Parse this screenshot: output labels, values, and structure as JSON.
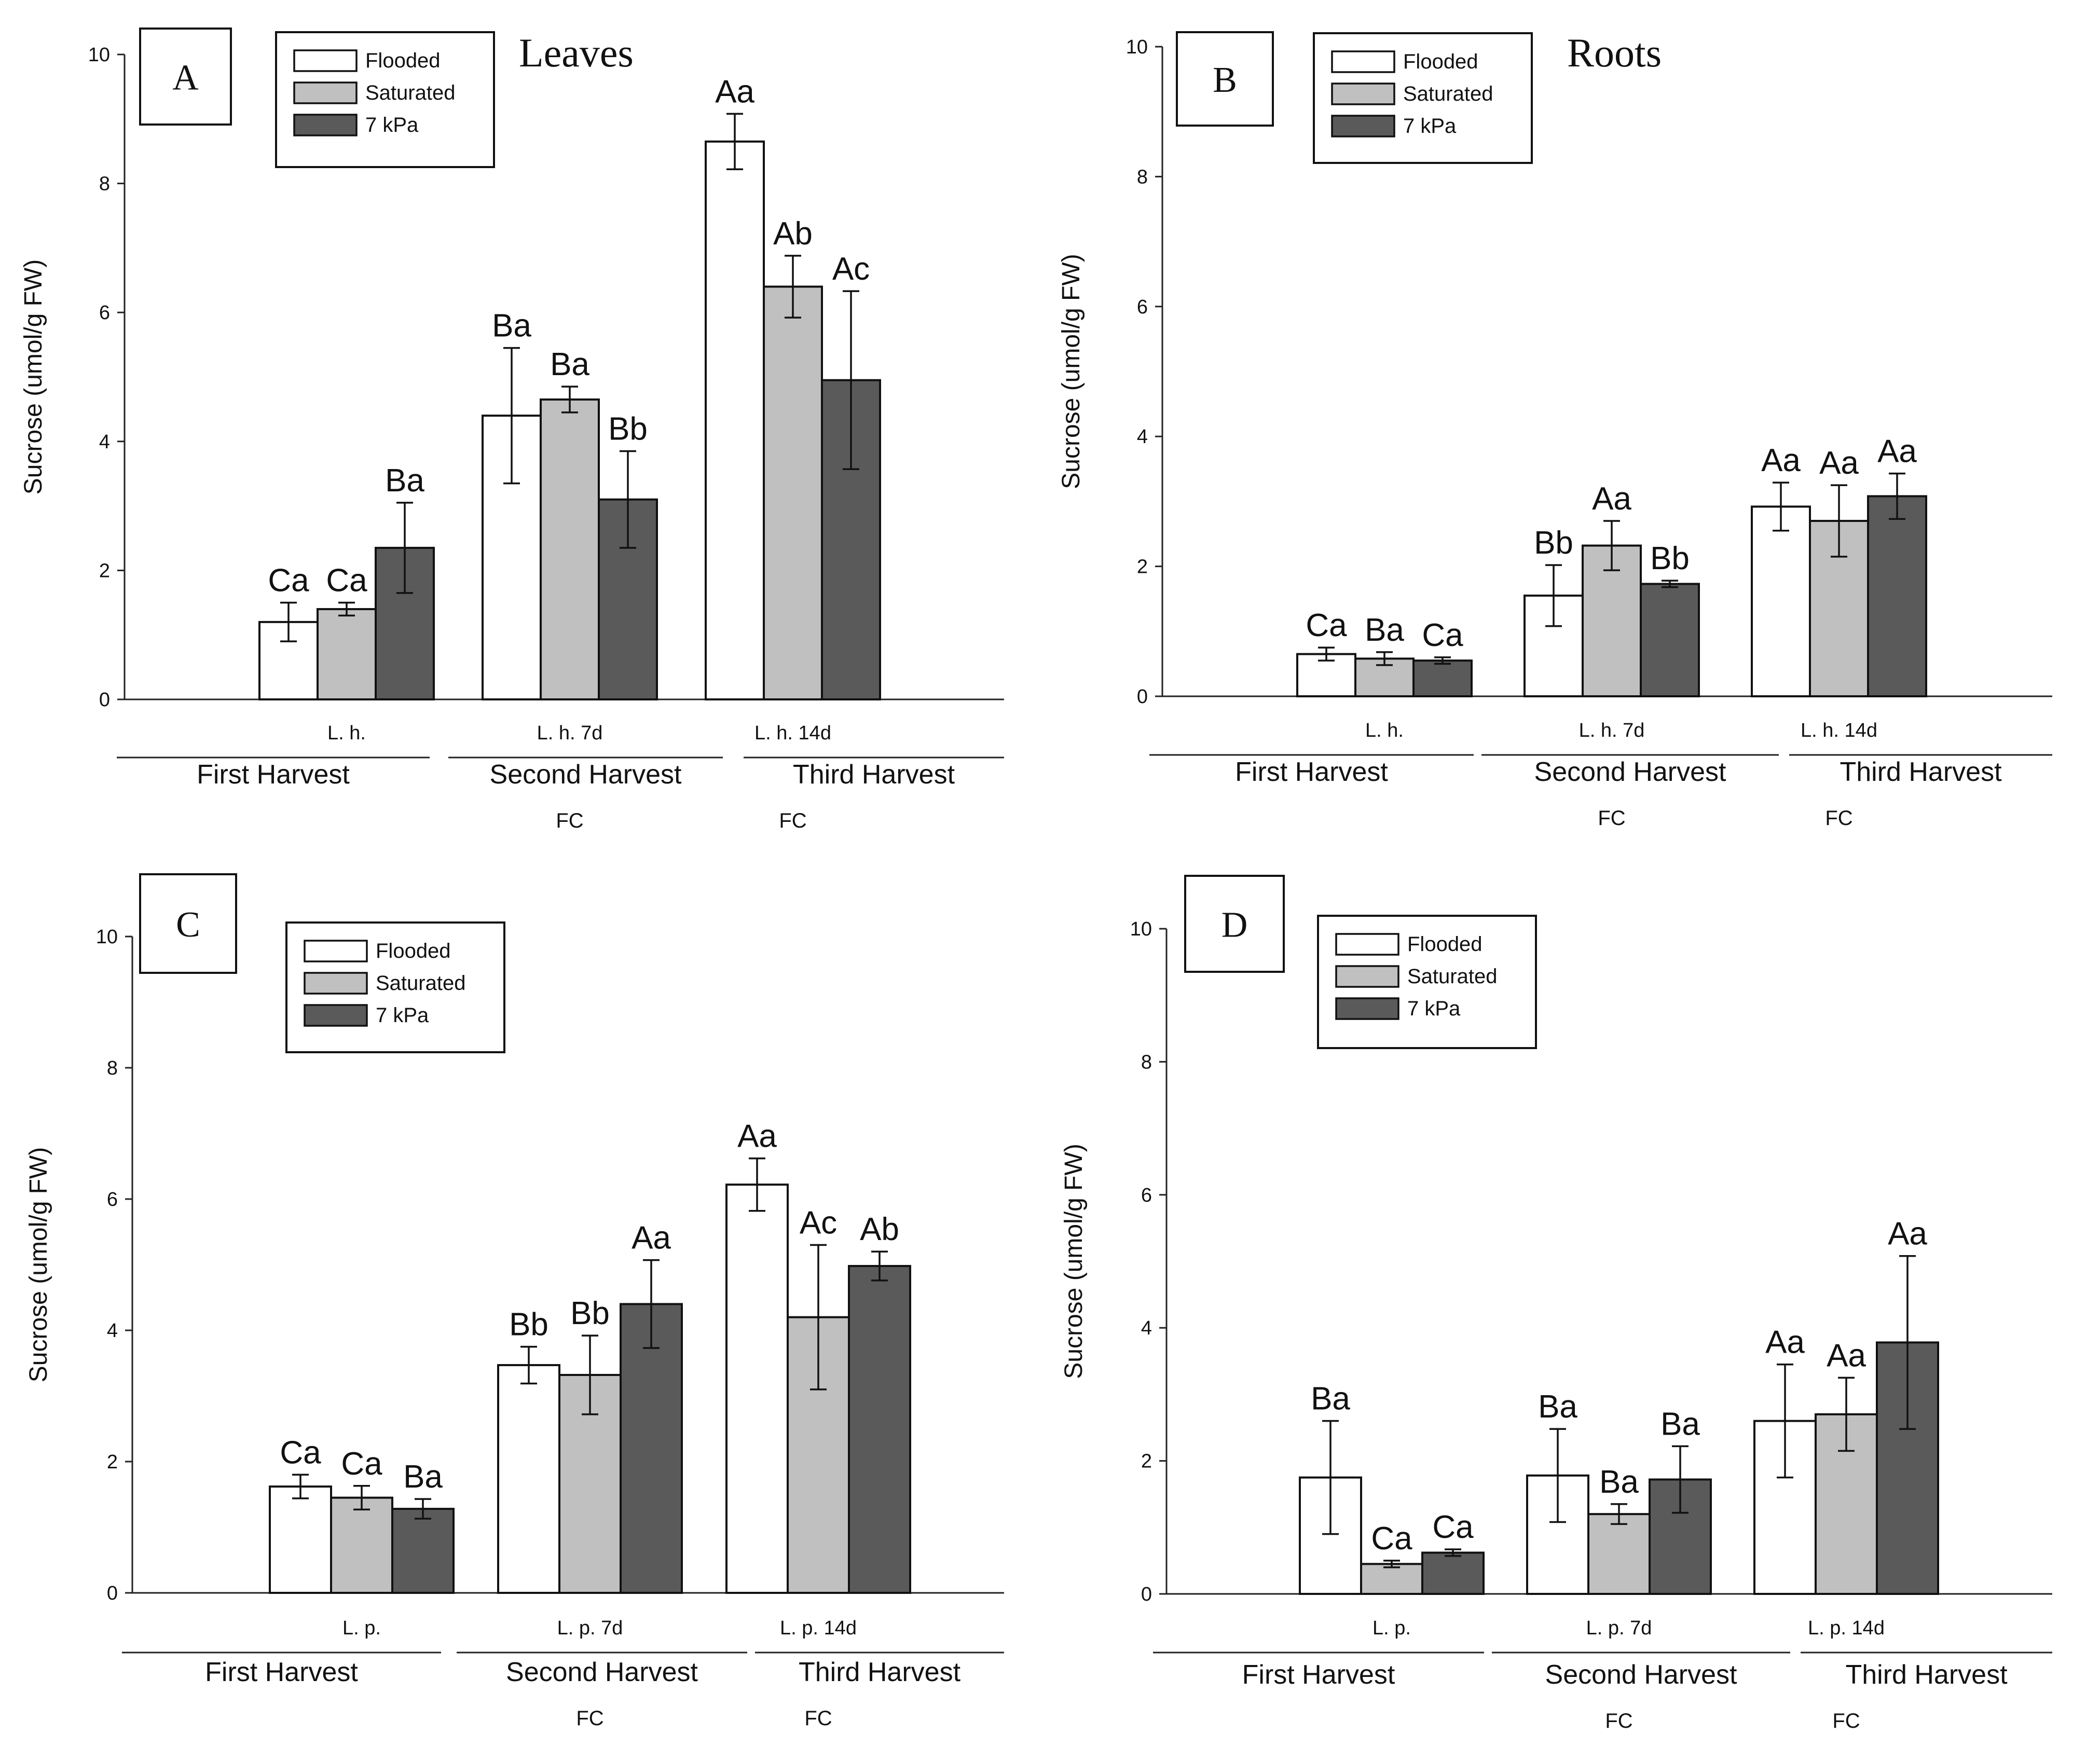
{
  "chart_data": [
    {
      "type": "bar",
      "panel_label": "A",
      "title": "Leaves",
      "ylabel": "Sucrose (umol/g FW)",
      "ylim": [
        0,
        10
      ],
      "yticks": [
        0,
        2,
        4,
        6,
        8,
        10
      ],
      "legend_placement": "top-left",
      "categories": [
        "First Harvest",
        "Second Harvest",
        "Third Harvest"
      ],
      "group_labels": [
        "L. h.",
        "L. h. 7d",
        "L. h. 14d"
      ],
      "fc_labels": [
        "",
        "FC",
        "FC"
      ],
      "series": [
        {
          "name": "Flooded",
          "values": [
            1.2,
            4.4,
            8.65
          ],
          "errors": [
            0.3,
            1.05,
            0.43
          ],
          "letters": [
            "Ca",
            "Ba",
            "Aa"
          ]
        },
        {
          "name": "Saturated",
          "values": [
            1.4,
            4.65,
            6.4
          ],
          "errors": [
            0.1,
            0.2,
            0.48
          ],
          "letters": [
            "Ca",
            "Ba",
            "Ab"
          ]
        },
        {
          "name": "7 kPa",
          "values": [
            2.35,
            3.1,
            4.95
          ],
          "errors": [
            0.7,
            0.75,
            1.38
          ],
          "letters": [
            "Ba",
            "Bb",
            "Ac"
          ]
        }
      ]
    },
    {
      "type": "bar",
      "panel_label": "B",
      "title": "Roots",
      "ylabel": "Sucrose (umol/g FW)",
      "ylim": [
        0,
        10
      ],
      "yticks": [
        0,
        2,
        4,
        6,
        8,
        10
      ],
      "legend_placement": "top-left",
      "categories": [
        "First Harvest",
        "Second Harvest",
        "Third Harvest"
      ],
      "group_labels": [
        "L. h.",
        "L. h. 7d",
        "L. h. 14d"
      ],
      "fc_labels": [
        "",
        "FC",
        "FC"
      ],
      "series": [
        {
          "name": "Flooded",
          "values": [
            0.65,
            1.55,
            2.92
          ],
          "errors": [
            0.1,
            0.47,
            0.37
          ],
          "letters": [
            "Ca",
            "Bb",
            "Aa"
          ]
        },
        {
          "name": "Saturated",
          "values": [
            0.58,
            2.32,
            2.7
          ],
          "errors": [
            0.1,
            0.38,
            0.55
          ],
          "letters": [
            "Ba",
            "Aa",
            "Aa"
          ]
        },
        {
          "name": "7 kPa",
          "values": [
            0.55,
            1.73,
            3.08
          ],
          "errors": [
            0.05,
            0.05,
            0.35
          ],
          "letters": [
            "Ca",
            "Bb",
            "Aa"
          ]
        }
      ]
    },
    {
      "type": "bar",
      "panel_label": "C",
      "title": "",
      "ylabel": "Sucrose (umol/g FW)",
      "ylim": [
        0,
        10
      ],
      "yticks": [
        0,
        2,
        4,
        6,
        8,
        10
      ],
      "legend_placement": "top-left",
      "categories": [
        "First Harvest",
        "Second Harvest",
        "Third Harvest"
      ],
      "group_labels": [
        "L. p.",
        "L. p. 7d",
        "L. p. 14d"
      ],
      "fc_labels": [
        "",
        "FC",
        "FC"
      ],
      "series": [
        {
          "name": "Flooded",
          "values": [
            1.62,
            3.47,
            6.22
          ],
          "errors": [
            0.18,
            0.28,
            0.4
          ],
          "letters": [
            "Ca",
            "Bb",
            "Aa"
          ]
        },
        {
          "name": "Saturated",
          "values": [
            1.45,
            3.32,
            4.2
          ],
          "errors": [
            0.18,
            0.6,
            1.1
          ],
          "letters": [
            "Ca",
            "Bb",
            "Ac"
          ]
        },
        {
          "name": "7 kPa",
          "values": [
            1.28,
            4.4,
            4.98
          ],
          "errors": [
            0.15,
            0.67,
            0.22
          ],
          "letters": [
            "Ba",
            "Aa",
            "Ab"
          ]
        }
      ]
    },
    {
      "type": "bar",
      "panel_label": "D",
      "title": "",
      "ylabel": "Sucrose (umol/g FW)",
      "ylim": [
        0,
        10
      ],
      "yticks": [
        0,
        2,
        4,
        6,
        8,
        10
      ],
      "legend_placement": "top-left",
      "categories": [
        "First Harvest",
        "Second Harvest",
        "Third Harvest"
      ],
      "group_labels": [
        "L. p.",
        "L. p. 7d",
        "L. p. 14d"
      ],
      "fc_labels": [
        "",
        "FC",
        "FC"
      ],
      "series": [
        {
          "name": "Flooded",
          "values": [
            1.75,
            1.78,
            2.6
          ],
          "errors": [
            0.85,
            0.7,
            0.85
          ],
          "letters": [
            "Ba",
            "Ba",
            "Aa"
          ]
        },
        {
          "name": "Saturated",
          "values": [
            0.45,
            1.2,
            2.7
          ],
          "errors": [
            0.05,
            0.15,
            0.55
          ],
          "letters": [
            "Ca",
            "Ba",
            "Aa"
          ]
        },
        {
          "name": "7 kPa",
          "values": [
            0.62,
            1.72,
            3.78
          ],
          "errors": [
            0.05,
            0.5,
            1.3
          ],
          "letters": [
            "Ca",
            "Ba",
            "Aa"
          ]
        }
      ]
    }
  ],
  "series_colors": {
    "Flooded": "#ffffff",
    "Saturated": "#c0c0c0",
    "7 kPa": "#5a5a5a"
  }
}
